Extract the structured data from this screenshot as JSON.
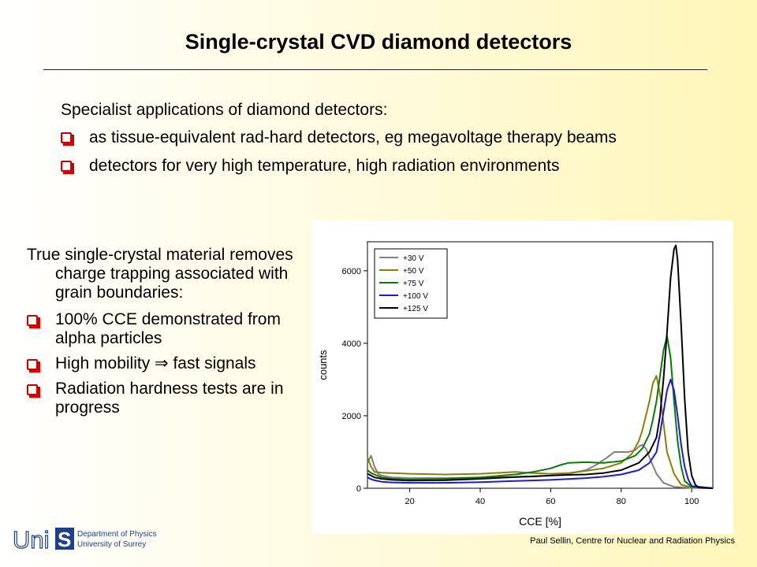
{
  "slide": {
    "title": "Single-crystal CVD diamond detectors",
    "intro": {
      "lead": "Specialist applications of diamond detectors:",
      "bullets": [
        "as tissue-equivalent rad-hard detectors, eg megavoltage therapy beams",
        "detectors for very high temperature, high radiation environments"
      ]
    },
    "left": {
      "lead": "True single-crystal material removes charge trapping associated with grain boundaries:",
      "bullets": [
        "100% CCE demonstrated from alpha particles",
        "High mobility ⇒ fast signals",
        "Radiation hardness tests are in progress"
      ]
    },
    "logo": {
      "mark_a": "Uni",
      "mark_b": "S",
      "line1": "Department of Physics",
      "line2": "University of Surrey"
    },
    "footer": "Paul Sellin, Centre for Nuclear and Radiation Physics",
    "bullet_color": "#d40000"
  },
  "chart_data": {
    "type": "line",
    "xlabel": "CCE [%]",
    "ylabel": "counts",
    "xlim": [
      8,
      106
    ],
    "ylim": [
      0,
      6800
    ],
    "xticks": [
      "20",
      "40",
      "60",
      "80",
      "100"
    ],
    "yticks": [
      "0",
      "2000",
      "4000",
      "6000"
    ],
    "legend_position": "top-left",
    "series": [
      {
        "name": "+30 V",
        "color": "#808080",
        "x": [
          8,
          9,
          10,
          11,
          12,
          15,
          20,
          30,
          40,
          50,
          55,
          60,
          65,
          70,
          73,
          76,
          78,
          80,
          82,
          84,
          85,
          86,
          87,
          88,
          90,
          92,
          95,
          100,
          106
        ],
        "y": [
          700,
          900,
          600,
          400,
          350,
          300,
          280,
          280,
          300,
          310,
          320,
          350,
          400,
          500,
          650,
          850,
          1000,
          1000,
          1000,
          1050,
          1150,
          1200,
          1100,
          850,
          400,
          150,
          40,
          10,
          0
        ]
      },
      {
        "name": "+50 V",
        "color": "#8b8000",
        "x": [
          8,
          9,
          10,
          12,
          15,
          20,
          30,
          40,
          50,
          55,
          60,
          65,
          70,
          75,
          80,
          83,
          85,
          86,
          87,
          88,
          89,
          90,
          91,
          92,
          93,
          95,
          97,
          100,
          106
        ],
        "y": [
          850,
          600,
          450,
          430,
          420,
          400,
          380,
          400,
          450,
          420,
          400,
          420,
          480,
          550,
          700,
          950,
          1300,
          1600,
          2000,
          2400,
          2900,
          3100,
          2600,
          1800,
          1000,
          400,
          100,
          20,
          0
        ]
      },
      {
        "name": "+75 V",
        "color": "#0a7a0a",
        "x": [
          8,
          9,
          10,
          12,
          15,
          20,
          30,
          40,
          50,
          55,
          60,
          63,
          65,
          70,
          75,
          80,
          84,
          86,
          88,
          89,
          90,
          91,
          92,
          93,
          94,
          95,
          96,
          97,
          98,
          100,
          106
        ],
        "y": [
          500,
          420,
          380,
          300,
          260,
          240,
          260,
          300,
          380,
          450,
          550,
          650,
          700,
          720,
          700,
          750,
          900,
          1100,
          1500,
          1900,
          2400,
          3100,
          3800,
          4200,
          3600,
          2400,
          1300,
          600,
          200,
          40,
          0
        ]
      },
      {
        "name": "+100 V",
        "color": "#1a1ae0",
        "x": [
          8,
          9,
          10,
          12,
          15,
          20,
          30,
          40,
          50,
          60,
          70,
          75,
          80,
          85,
          88,
          90,
          91,
          92,
          93,
          94,
          95,
          96,
          97,
          98,
          99,
          100,
          106
        ],
        "y": [
          300,
          250,
          220,
          180,
          160,
          150,
          150,
          170,
          200,
          230,
          280,
          320,
          380,
          500,
          700,
          1000,
          1500,
          2100,
          2700,
          3000,
          2700,
          2000,
          1200,
          600,
          250,
          60,
          0
        ]
      },
      {
        "name": "+125 V",
        "color": "#000000",
        "x": [
          8,
          9,
          10,
          12,
          15,
          20,
          30,
          40,
          50,
          60,
          65,
          70,
          75,
          80,
          85,
          88,
          90,
          91,
          92,
          93,
          94,
          95,
          95.5,
          96,
          97,
          98,
          99,
          100,
          101,
          102,
          106
        ],
        "y": [
          400,
          350,
          300,
          260,
          230,
          210,
          220,
          260,
          310,
          350,
          370,
          380,
          420,
          500,
          700,
          1000,
          1400,
          2000,
          3000,
          4300,
          5800,
          6600,
          6700,
          6300,
          4500,
          2500,
          1000,
          350,
          100,
          20,
          0
        ]
      }
    ]
  }
}
